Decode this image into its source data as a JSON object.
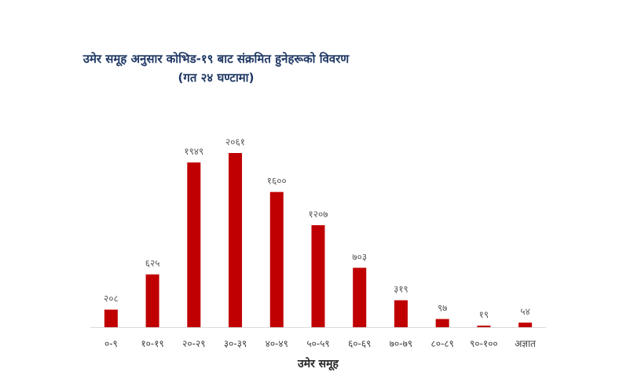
{
  "chart_data": {
    "type": "bar",
    "title": "उमेर समूह अनुसार कोभिड-१९ बाट संक्रमित हुनेहरूको विवरण",
    "subtitle": "(गत २४ घण्टामा)",
    "x_label": "उमेर समूह",
    "categories": [
      "०-९",
      "१०-१९",
      "२०-२९",
      "३०-३९",
      "४०-४९",
      "५०-५९",
      "६०-६९",
      "७०-७९",
      "८०-८९",
      "९०-१००",
      "अज्ञात"
    ],
    "values": [
      208,
      625,
      1949,
      2061,
      1600,
      1207,
      703,
      319,
      97,
      19,
      54
    ],
    "value_labels": [
      "२०८",
      "६२५",
      "१९४९",
      "२०६१",
      "१६००",
      "१२०७",
      "७०३",
      "३१९",
      "९७",
      "१९",
      "५४"
    ],
    "color": "#c00000"
  }
}
